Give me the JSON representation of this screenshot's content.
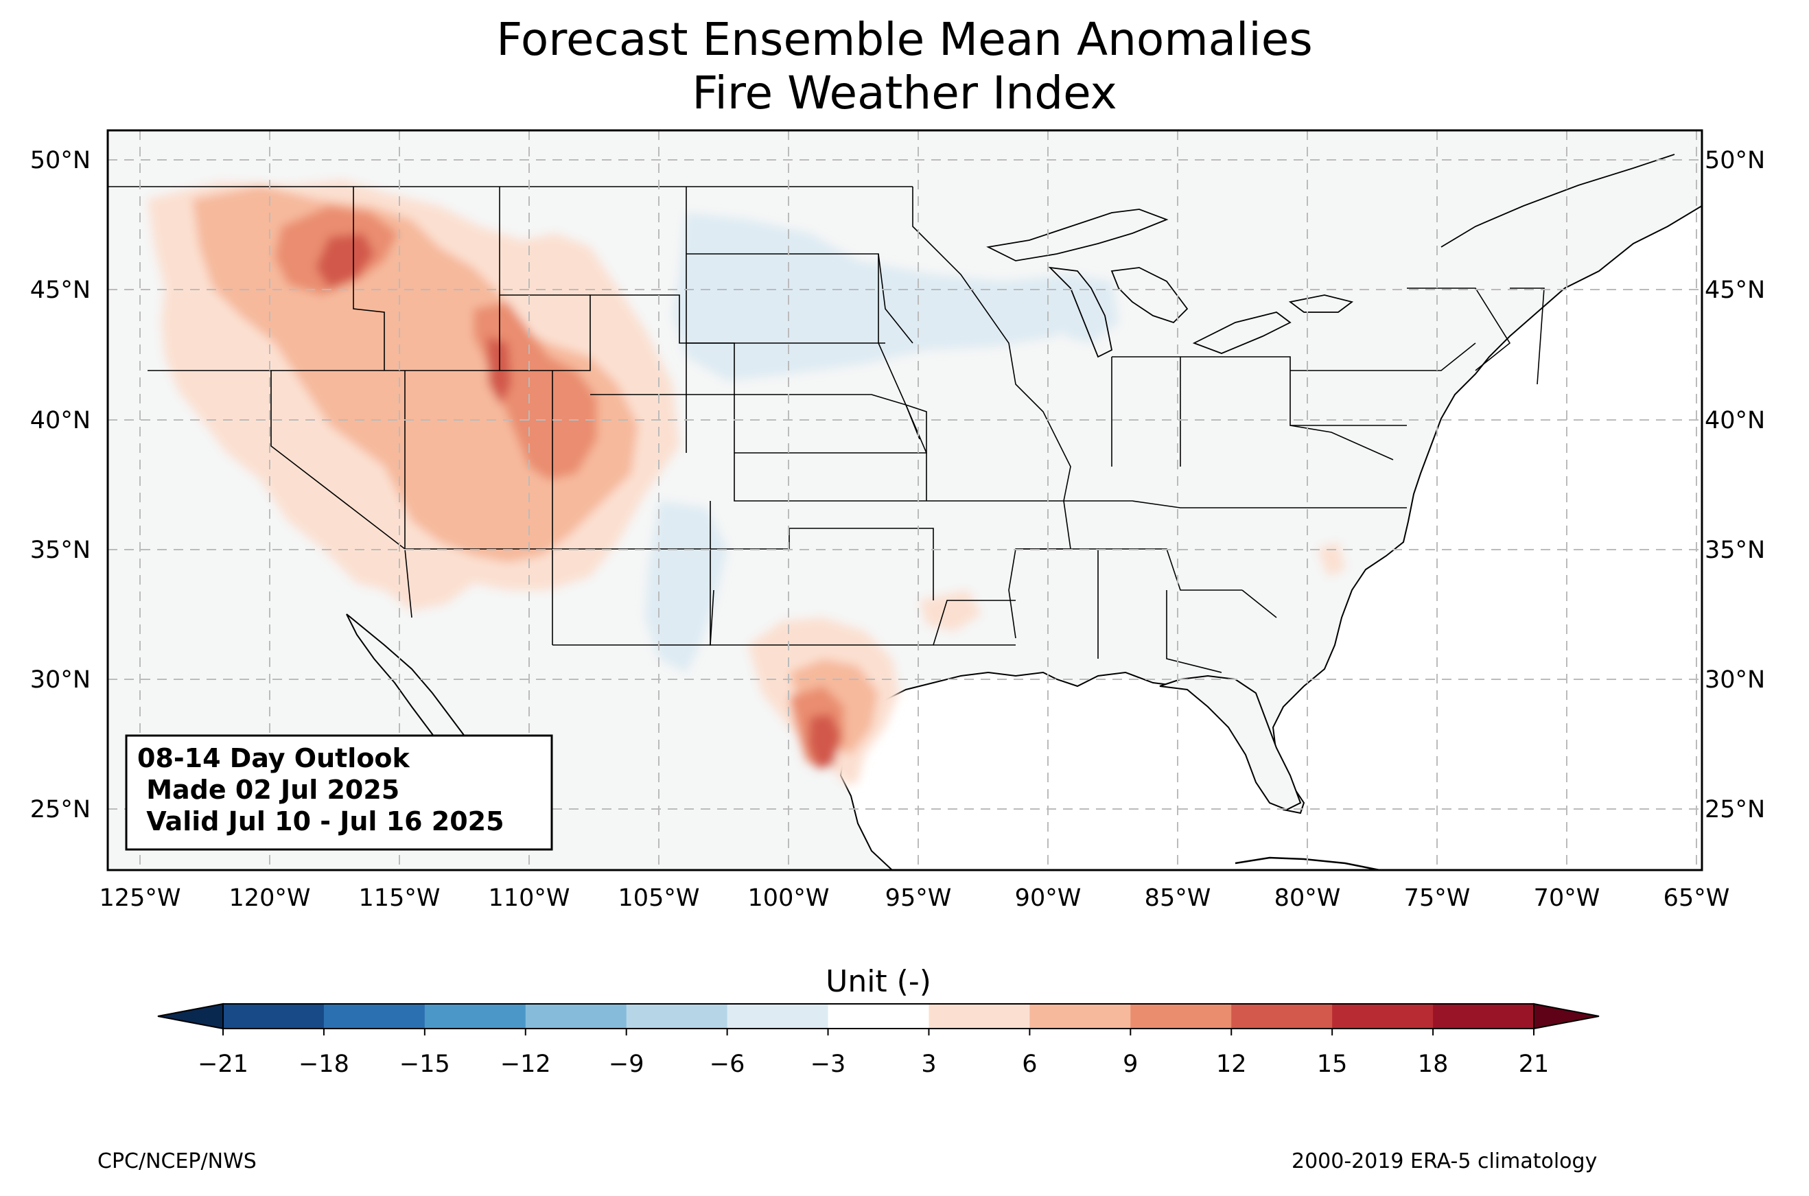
{
  "title": {
    "line1": "Forecast Ensemble Mean Anomalies",
    "line2": "Fire Weather Index"
  },
  "map": {
    "lat_ticks": [
      "50°N",
      "45°N",
      "40°N",
      "35°N",
      "30°N",
      "25°N"
    ],
    "lon_ticks": [
      "125°W",
      "120°W",
      "115°W",
      "110°W",
      "105°W",
      "100°W",
      "95°W",
      "90°W",
      "85°W",
      "80°W",
      "75°W",
      "70°W",
      "65°W"
    ],
    "extent": {
      "lon_min": -126.2,
      "lon_max": -64.8,
      "lat_min": 22.8,
      "lat_max": 51.2
    },
    "land_color": "#f5f6f6",
    "grid": "dashed"
  },
  "outlook_box": {
    "line1": "08-14 Day Outlook",
    "line2": " Made 02 Jul 2025",
    "line3": " Valid Jul 10 - Jul 16 2025"
  },
  "colorbar": {
    "label": "Unit (-)",
    "ticks": [
      "−21",
      "−18",
      "−15",
      "−12",
      "−9",
      "−6",
      "−3",
      "3",
      "6",
      "9",
      "12",
      "15",
      "18",
      "21"
    ],
    "colors": [
      "#174a87",
      "#2b70b1",
      "#4b98c8",
      "#86bcda",
      "#b6d6e8",
      "#deebf3",
      "#ffffff",
      "#fbe0d1",
      "#f6b99c",
      "#ea8d6f",
      "#d2594b",
      "#b92b32",
      "#991427"
    ],
    "under_color": "#082850",
    "over_color": "#5f0217"
  },
  "footer": {
    "left": "CPC/NCEP/NWS",
    "right": "2000-2019 ERA-5 climatology"
  },
  "anomaly_regions": [
    {
      "name": "Pacific Northwest / Oregon",
      "level": "3 to 6"
    },
    {
      "name": "Idaho / western Montana",
      "level": "9 to 15"
    },
    {
      "name": "Utah / Colorado",
      "level": "9 to 15"
    },
    {
      "name": "South Texas",
      "level": "12 to 15"
    },
    {
      "name": "Upper Midwest",
      "level": "-3 to -6"
    },
    {
      "name": "Oklahoma / north Texas",
      "level": "-3 to -6"
    }
  ]
}
